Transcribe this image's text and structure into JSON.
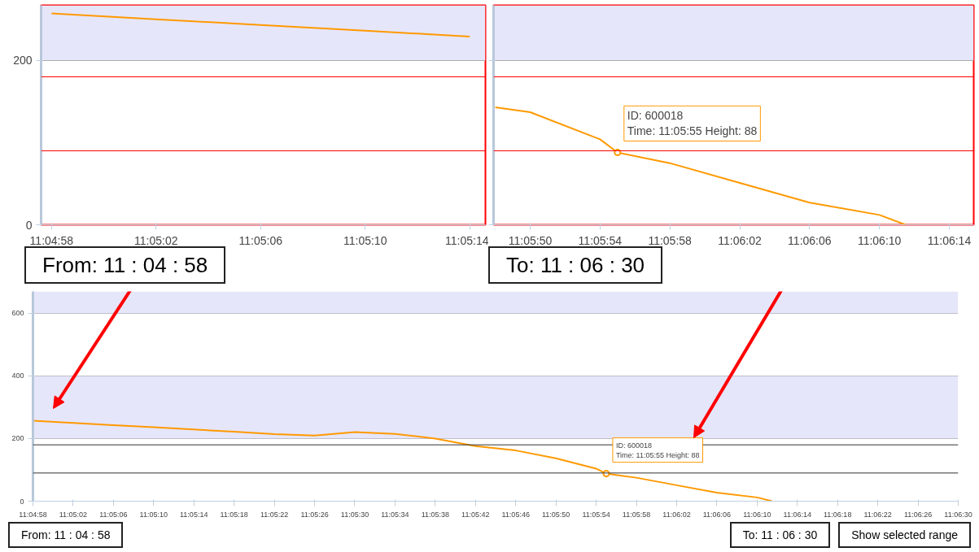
{
  "chart_data": [
    {
      "type": "line",
      "xlim": [
        11.082667,
        11.087389
      ],
      "ylim": [
        0,
        267
      ],
      "xticks": [
        {
          "value": 11.082778,
          "label": "11:04:58"
        },
        {
          "value": 11.083889,
          "label": "11:05:02"
        },
        {
          "value": 11.085,
          "label": "11:05:06"
        },
        {
          "value": 11.086111,
          "label": "11:05:10"
        },
        {
          "value": 11.087222,
          "label": "11:05:14"
        }
      ],
      "yticks": [
        0,
        200
      ],
      "grid": "y",
      "bands": [
        {
          "axis": "y",
          "from": 200,
          "to": 267,
          "color": "#e6e6fa"
        }
      ],
      "ref_lines": [
        {
          "axis": "y",
          "value": 180,
          "color": "#ff0000"
        },
        {
          "axis": "y",
          "value": 90,
          "color": "#ff0000"
        }
      ],
      "series": [
        {
          "color": "#ff9900",
          "x": [
            11.082778,
            11.083889,
            11.085,
            11.086111,
            11.087222
          ],
          "values": [
            257,
            250,
            243,
            236,
            229
          ]
        }
      ],
      "annotations": [
        "From: 11 : 04 : 58"
      ]
    },
    {
      "type": "line",
      "xlim": [
        11.096639,
        11.104278
      ],
      "ylim": [
        0,
        267
      ],
      "xticks": [
        {
          "value": 11.097222,
          "label": "11:05:50"
        },
        {
          "value": 11.098333,
          "label": "11:05:54"
        },
        {
          "value": 11.099444,
          "label": "11:05:58"
        },
        {
          "value": 11.100556,
          "label": "11:06:02"
        },
        {
          "value": 11.101667,
          "label": "11:06:06"
        },
        {
          "value": 11.102778,
          "label": "11:06:10"
        },
        {
          "value": 11.103889,
          "label": "11:06:14"
        }
      ],
      "yticks": [
        0,
        200
      ],
      "grid": "y",
      "tick_labels": "x",
      "bands": [
        {
          "axis": "y",
          "from": 200,
          "to": 267,
          "color": "#e6e6fa"
        }
      ],
      "ref_lines": [
        {
          "axis": "y",
          "value": 180,
          "color": "#ff0000"
        },
        {
          "axis": "y",
          "value": 90,
          "color": "#ff0000"
        }
      ],
      "series": [
        {
          "color": "#ff9900",
          "x": [
            11.096667,
            11.097222,
            11.098333,
            11.098611,
            11.099444,
            11.100556,
            11.101667,
            11.102778,
            11.103194
          ],
          "values": [
            143,
            137,
            104,
            88,
            75,
            51,
            27,
            12,
            0
          ]
        }
      ],
      "annotations": [
        {
          "text": "ID: 600018\nTime: 11:05:55 Height: 88",
          "x": 11.098611,
          "y": 88
        },
        "To: 11 : 06 : 30"
      ]
    },
    {
      "type": "line",
      "xlim": [
        11.082778,
        11.108333
      ],
      "ylim": [
        0,
        670
      ],
      "xticks": [
        {
          "value": 11.082778,
          "label": "11:04:58"
        },
        {
          "value": 11.083889,
          "label": "11:05:02"
        },
        {
          "value": 11.085,
          "label": "11:05:06"
        },
        {
          "value": 11.086111,
          "label": "11:05:10"
        },
        {
          "value": 11.087222,
          "label": "11:05:14"
        },
        {
          "value": 11.088333,
          "label": "11:05:18"
        },
        {
          "value": 11.089444,
          "label": "11:05:22"
        },
        {
          "value": 11.090556,
          "label": "11:05:26"
        },
        {
          "value": 11.091667,
          "label": "11:05:30"
        },
        {
          "value": 11.092778,
          "label": "11:05:34"
        },
        {
          "value": 11.093889,
          "label": "11:05:38"
        },
        {
          "value": 11.095,
          "label": "11:05:42"
        },
        {
          "value": 11.096111,
          "label": "11:05:46"
        },
        {
          "value": 11.097222,
          "label": "11:05:50"
        },
        {
          "value": 11.098333,
          "label": "11:05:54"
        },
        {
          "value": 11.099444,
          "label": "11:05:58"
        },
        {
          "value": 11.100556,
          "label": "11:06:02"
        },
        {
          "value": 11.101667,
          "label": "11:06:06"
        },
        {
          "value": 11.102778,
          "label": "11:06:10"
        },
        {
          "value": 11.103889,
          "label": "11:06:14"
        },
        {
          "value": 11.105,
          "label": "11:06:18"
        },
        {
          "value": 11.106111,
          "label": "11:06:22"
        },
        {
          "value": 11.107222,
          "label": "11:06:26"
        },
        {
          "value": 11.108333,
          "label": "11:06:30"
        }
      ],
      "yticks": [
        0,
        200,
        400,
        600
      ],
      "grid": "y",
      "bands": [
        {
          "axis": "y",
          "from": 200,
          "to": 400,
          "color": "#e6e6fa"
        },
        {
          "axis": "y",
          "from": 600,
          "to": 670,
          "color": "#e6e6fa"
        }
      ],
      "ref_lines": [
        {
          "axis": "y",
          "value": 180,
          "color": "#333333"
        },
        {
          "axis": "y",
          "value": 90,
          "color": "#333333"
        }
      ],
      "series": [
        {
          "color": "#ff9900",
          "x": [
            11.082778,
            11.083889,
            11.085,
            11.086111,
            11.087222,
            11.088333,
            11.089444,
            11.090556,
            11.091667,
            11.092778,
            11.093889,
            11.095,
            11.096111,
            11.097222,
            11.098333,
            11.098611,
            11.099444,
            11.100556,
            11.101667,
            11.102778,
            11.103194
          ],
          "values": [
            257,
            250,
            243,
            236,
            229,
            222,
            214,
            210,
            221,
            215,
            200,
            176,
            162,
            137,
            104,
            88,
            75,
            51,
            27,
            12,
            0
          ]
        }
      ],
      "annotations": [
        {
          "text": "ID: 600018\nTime: 11:05:55 Height: 88",
          "x": 11.098611,
          "y": 88
        },
        "From: 11 : 04 : 58",
        "To: 11 : 06 : 30",
        "Show selected range"
      ]
    }
  ]
}
